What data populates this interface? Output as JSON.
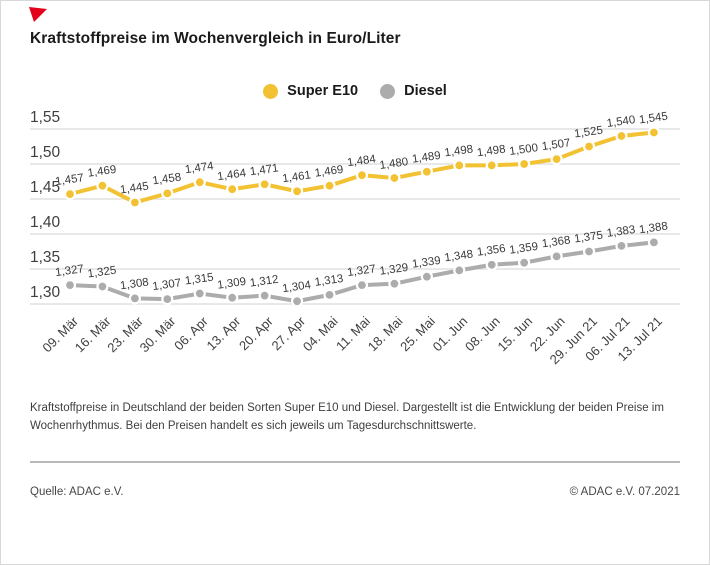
{
  "page": {
    "title": "Kraftstoffpreise im Wochenvergleich in Euro/Liter",
    "description": "Kraftstoffpreise in Deutschland der beiden Sorten Super E10 und Diesel. Dargestellt ist die Entwicklung der beiden Preise im Wochenrhythmus. Bei den Preisen handelt es sich jeweils um Tagesdurchschnittswerte.",
    "source": "Quelle: ADAC e.V.",
    "copyright": "© ADAC e.V. 07.2021"
  },
  "colors": {
    "super_e10": "#F2C233",
    "diesel": "#ACACAC",
    "grid": "#DBDBDB",
    "tick_text": "#3f3f3f",
    "point_label_text": "#3a3a3a",
    "accent_red": "#E2001A"
  },
  "chart_data": {
    "type": "line",
    "title": "Kraftstoffpreise im Wochenvergleich in Euro/Liter",
    "unit": "Euro/Liter",
    "x": [
      "09. Mär",
      "16. Mär",
      "23. Mär",
      "30. Mär",
      "06. Apr",
      "13. Apr",
      "20. Apr",
      "27. Apr",
      "04. Mai",
      "11. Mai",
      "18. Mai",
      "25. Mai",
      "01. Jun",
      "08. Jun",
      "15. Jun",
      "22. Jun",
      "29. Jun 21",
      "06. Jul 21",
      "13. Jul 21"
    ],
    "series": [
      {
        "name": "Super E10",
        "color": "#F2C233",
        "values": [
          1.457,
          1.469,
          1.445,
          1.458,
          1.474,
          1.464,
          1.471,
          1.461,
          1.469,
          1.484,
          1.48,
          1.489,
          1.498,
          1.498,
          1.5,
          1.507,
          1.525,
          1.54,
          1.545
        ]
      },
      {
        "name": "Diesel",
        "color": "#ACACAC",
        "values": [
          1.327,
          1.325,
          1.308,
          1.307,
          1.315,
          1.309,
          1.312,
          1.304,
          1.313,
          1.327,
          1.329,
          1.339,
          1.348,
          1.356,
          1.359,
          1.368,
          1.375,
          1.383,
          1.388
        ]
      }
    ],
    "ylim": [
      1.3,
      1.55
    ],
    "yticks": [
      1.55,
      1.5,
      1.45,
      1.4,
      1.35,
      1.3
    ],
    "decimal_separator": ",",
    "grid": "horizontal",
    "legend_position": "top-center",
    "point_labels": true,
    "x_label_rotation_deg": -45
  }
}
